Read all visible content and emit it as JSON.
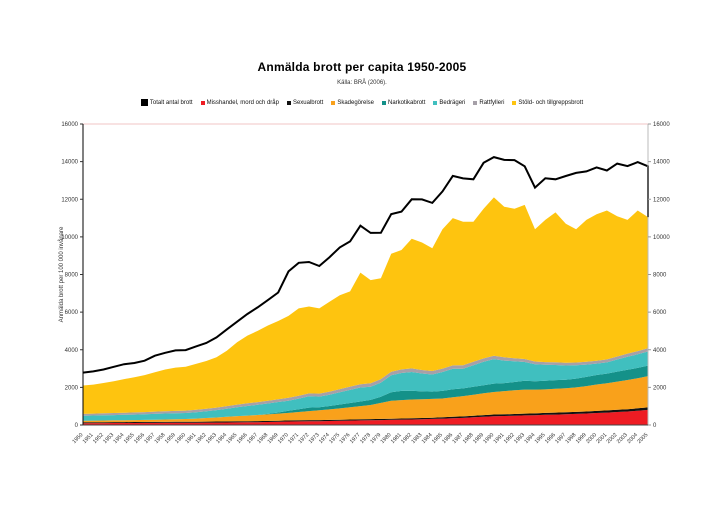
{
  "header": {
    "title": "Anmälda brott per capita 1950-2005",
    "subtitle": "Källa: BRÅ (2006)."
  },
  "axes": {
    "y_left_title": "Anmälda brott per 100 000 invånare",
    "y_ticks": [
      0,
      2000,
      4000,
      6000,
      8000,
      10000,
      12000,
      14000,
      16000
    ],
    "y_min": 0,
    "y_max": 16000,
    "x_label_rotation_deg": -45,
    "grid": "off",
    "top_border_color": "#f2c6c6",
    "left_axis_color": "#000000",
    "right_axis_color": "#bbbbbb",
    "bottom_axis_color": "#444444",
    "tick_label_color": "#333333"
  },
  "legend": {
    "position": "top-center",
    "items": [
      {
        "slug": "totalt-antal-brott",
        "label": "Totalt antal brott",
        "color": "#000000",
        "big": true
      },
      {
        "slug": "misshandel-mord-och-drap",
        "label": "Misshandel, mord och dråp",
        "color": "#ee1c23",
        "big": false
      },
      {
        "slug": "sexualbrott",
        "label": "Sexualbrott",
        "color": "#111111",
        "big": false
      },
      {
        "slug": "skadegorelse",
        "label": "Skadegörelse",
        "color": "#f9a11b",
        "big": false
      },
      {
        "slug": "narkotikabrott",
        "label": "Narkotikabrott",
        "color": "#149189",
        "big": false
      },
      {
        "slug": "bedrageri",
        "label": "Bedrägeri",
        "color": "#40bfbf",
        "big": false
      },
      {
        "slug": "rattfylleri",
        "label": "Rattfylleri",
        "color": "#a6a0a8",
        "big": false
      },
      {
        "slug": "stold-och-tillgreppsbrott",
        "label": "Stöld- och tillgreppsbrott",
        "color": "#fec40f",
        "big": false
      }
    ]
  },
  "chart_data": {
    "type": "area",
    "stacked": true,
    "title": "Anmälda brott per capita 1950-2005",
    "subtitle": "Källa: BRÅ (2006).",
    "xlabel": "",
    "ylabel": "Anmälda brott per 100 000 invånare",
    "ylim": [
      0,
      16000
    ],
    "legend_position": "top",
    "x": [
      1950,
      1951,
      1952,
      1953,
      1954,
      1955,
      1956,
      1957,
      1958,
      1959,
      1960,
      1961,
      1962,
      1963,
      1964,
      1965,
      1966,
      1967,
      1968,
      1969,
      1970,
      1971,
      1972,
      1973,
      1974,
      1975,
      1976,
      1977,
      1978,
      1979,
      1980,
      1981,
      1982,
      1983,
      1984,
      1985,
      1986,
      1987,
      1988,
      1989,
      1990,
      1991,
      1992,
      1993,
      1994,
      1995,
      1996,
      1997,
      1998,
      1999,
      2000,
      2001,
      2002,
      2003,
      2004,
      2005
    ],
    "series": [
      {
        "name": "Misshandel, mord och dråp",
        "slug": "misshandel-mord-och-drap",
        "type": "area",
        "color": "#ee1c23",
        "values": [
          98,
          100,
          102,
          104,
          106,
          108,
          110,
          113,
          116,
          118,
          120,
          123,
          126,
          130,
          134,
          139,
          144,
          150,
          158,
          170,
          185,
          192,
          198,
          202,
          210,
          222,
          232,
          242,
          252,
          262,
          275,
          285,
          295,
          308,
          322,
          340,
          360,
          380,
          410,
          440,
          468,
          480,
          495,
          510,
          520,
          545,
          555,
          570,
          590,
          610,
          640,
          660,
          690,
          720,
          760,
          805
        ]
      },
      {
        "name": "Sexualbrott",
        "slug": "sexualbrott",
        "type": "area",
        "color": "#111111",
        "values": [
          48,
          48,
          49,
          49,
          50,
          50,
          50,
          51,
          51,
          52,
          52,
          53,
          54,
          55,
          56,
          57,
          57,
          58,
          58,
          59,
          59,
          60,
          60,
          60,
          61,
          61,
          61,
          62,
          62,
          62,
          62,
          63,
          63,
          64,
          66,
          70,
          74,
          78,
          83,
          86,
          88,
          90,
          92,
          94,
          97,
          100,
          102,
          105,
          107,
          110,
          112,
          115,
          118,
          122,
          126,
          132
        ]
      },
      {
        "name": "Skadegörelse",
        "slug": "skadegorelse",
        "type": "area",
        "color": "#f9a11b",
        "values": [
          80,
          85,
          90,
          95,
          100,
          105,
          112,
          120,
          128,
          136,
          145,
          165,
          190,
          215,
          245,
          275,
          300,
          325,
          350,
          375,
          400,
          440,
          480,
          520,
          560,
          600,
          650,
          700,
          750,
          850,
          950,
          975,
          1000,
          1000,
          1000,
          1000,
          1040,
          1080,
          1120,
          1160,
          1200,
          1230,
          1255,
          1280,
          1265,
          1250,
          1265,
          1280,
          1300,
          1350,
          1400,
          1440,
          1500,
          1550,
          1600,
          1660
        ]
      },
      {
        "name": "Narkotikabrott",
        "slug": "narkotikabrott",
        "type": "area",
        "color": "#149189",
        "values": [
          0,
          0,
          0,
          0,
          0,
          0,
          0,
          0,
          0,
          0,
          0,
          0,
          0,
          0,
          0,
          0,
          0,
          0,
          25,
          60,
          110,
          150,
          185,
          165,
          180,
          205,
          225,
          245,
          270,
          330,
          455,
          490,
          460,
          415,
          390,
          405,
          425,
          405,
          420,
          430,
          445,
          425,
          445,
          465,
          445,
          455,
          465,
          455,
          470,
          485,
          505,
          515,
          530,
          540,
          550,
          560
        ]
      },
      {
        "name": "Bedrägeri",
        "slug": "bedrageri",
        "type": "area",
        "color": "#40bfbf",
        "values": [
          265,
          270,
          275,
          280,
          285,
          290,
          298,
          308,
          318,
          320,
          322,
          340,
          360,
          390,
          430,
          475,
          510,
          540,
          550,
          560,
          540,
          560,
          600,
          560,
          600,
          650,
          700,
          745,
          700,
          750,
          900,
          950,
          1000,
          950,
          905,
          1000,
          1090,
          1050,
          1145,
          1245,
          1300,
          1200,
          1100,
          1000,
          900,
          850,
          805,
          755,
          705,
          655,
          605,
          600,
          645,
          700,
          720,
          750
        ]
      },
      {
        "name": "Rattfylleri",
        "slug": "rattfylleri",
        "type": "area",
        "color": "#a6a0a8",
        "values": [
          100,
          103,
          106,
          109,
          112,
          115,
          118,
          120,
          123,
          126,
          128,
          130,
          133,
          135,
          138,
          140,
          142,
          145,
          147,
          150,
          152,
          155,
          158,
          160,
          164,
          168,
          172,
          176,
          180,
          184,
          188,
          190,
          190,
          188,
          185,
          182,
          180,
          180,
          179,
          178,
          178,
          172,
          166,
          160,
          150,
          142,
          144,
          146,
          148,
          149,
          150,
          155,
          160,
          166,
          172,
          180
        ]
      },
      {
        "name": "Stöld- och tillgreppsbrott",
        "slug": "stold-och-tillgreppsbrott",
        "type": "area",
        "color": "#fec40f",
        "values": [
          1509,
          1544,
          1608,
          1693,
          1787,
          1872,
          1962,
          2088,
          2214,
          2298,
          2333,
          2439,
          2537,
          2675,
          2947,
          3314,
          3597,
          3782,
          4002,
          4156,
          4354,
          4643,
          4619,
          4533,
          4775,
          4994,
          5060,
          5930,
          5486,
          5362,
          6270,
          6347,
          6892,
          6775,
          6532,
          7403,
          7831,
          7627,
          7443,
          7961,
          8421,
          8003,
          7947,
          8191,
          7023,
          7558,
          7964,
          7389,
          7080,
          7541,
          7788,
          7915,
          7457,
          7102,
          7472,
          6963
        ]
      },
      {
        "name": "Totalt antal brott",
        "slug": "totalt-antal-brott",
        "type": "line",
        "color": "#000000",
        "values": [
          2784,
          2851,
          2950,
          3094,
          3234,
          3294,
          3420,
          3682,
          3839,
          3964,
          3982,
          4180,
          4358,
          4654,
          5083,
          5490,
          5902,
          6251,
          6641,
          7041,
          8166,
          8622,
          8662,
          8453,
          8919,
          9439,
          9759,
          10594,
          10210,
          10216,
          11208,
          11346,
          12000,
          11992,
          11804,
          12418,
          13239,
          13106,
          13063,
          13935,
          14240,
          14093,
          14079,
          13750,
          12620,
          13111,
          13060,
          13234,
          13399,
          13478,
          13693,
          13530,
          13897,
          13764,
          13974,
          13754
        ]
      }
    ],
    "line_end_drops_to_stack_top": true
  }
}
